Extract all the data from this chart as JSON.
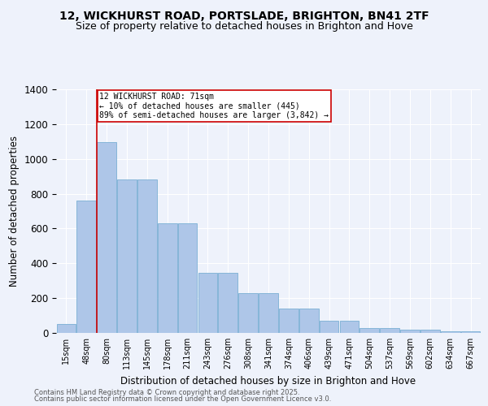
{
  "title": "12, WICKHURST ROAD, PORTSLADE, BRIGHTON, BN41 2TF",
  "subtitle": "Size of property relative to detached houses in Brighton and Hove",
  "xlabel": "Distribution of detached houses by size in Brighton and Hove",
  "ylabel": "Number of detached properties",
  "categories": [
    "15sqm",
    "48sqm",
    "80sqm",
    "113sqm",
    "145sqm",
    "178sqm",
    "211sqm",
    "243sqm",
    "276sqm",
    "308sqm",
    "341sqm",
    "374sqm",
    "406sqm",
    "439sqm",
    "471sqm",
    "504sqm",
    "537sqm",
    "569sqm",
    "602sqm",
    "634sqm",
    "667sqm"
  ],
  "bar_values": [
    50,
    760,
    1095,
    880,
    880,
    630,
    630,
    345,
    345,
    230,
    230,
    140,
    140,
    70,
    70,
    30,
    30,
    20,
    20,
    10,
    10
  ],
  "bar_color": "#aec6e8",
  "bar_edge_color": "#7aafd4",
  "vline_color": "#cc0000",
  "vline_pos": 1.5,
  "annotation_text": "12 WICKHURST ROAD: 71sqm\n← 10% of detached houses are smaller (445)\n89% of semi-detached houses are larger (3,842) →",
  "annotation_box_color": "#ffffff",
  "annotation_border_color": "#cc0000",
  "background_color": "#eef2fb",
  "grid_color": "#ffffff",
  "ylim": [
    0,
    1400
  ],
  "footer1": "Contains HM Land Registry data © Crown copyright and database right 2025.",
  "footer2": "Contains public sector information licensed under the Open Government Licence v3.0.",
  "title_fontsize": 10,
  "subtitle_fontsize": 9,
  "tick_fontsize": 7,
  "ylabel_fontsize": 8.5,
  "xlabel_fontsize": 8.5,
  "footer_fontsize": 6,
  "annot_fontsize": 7
}
